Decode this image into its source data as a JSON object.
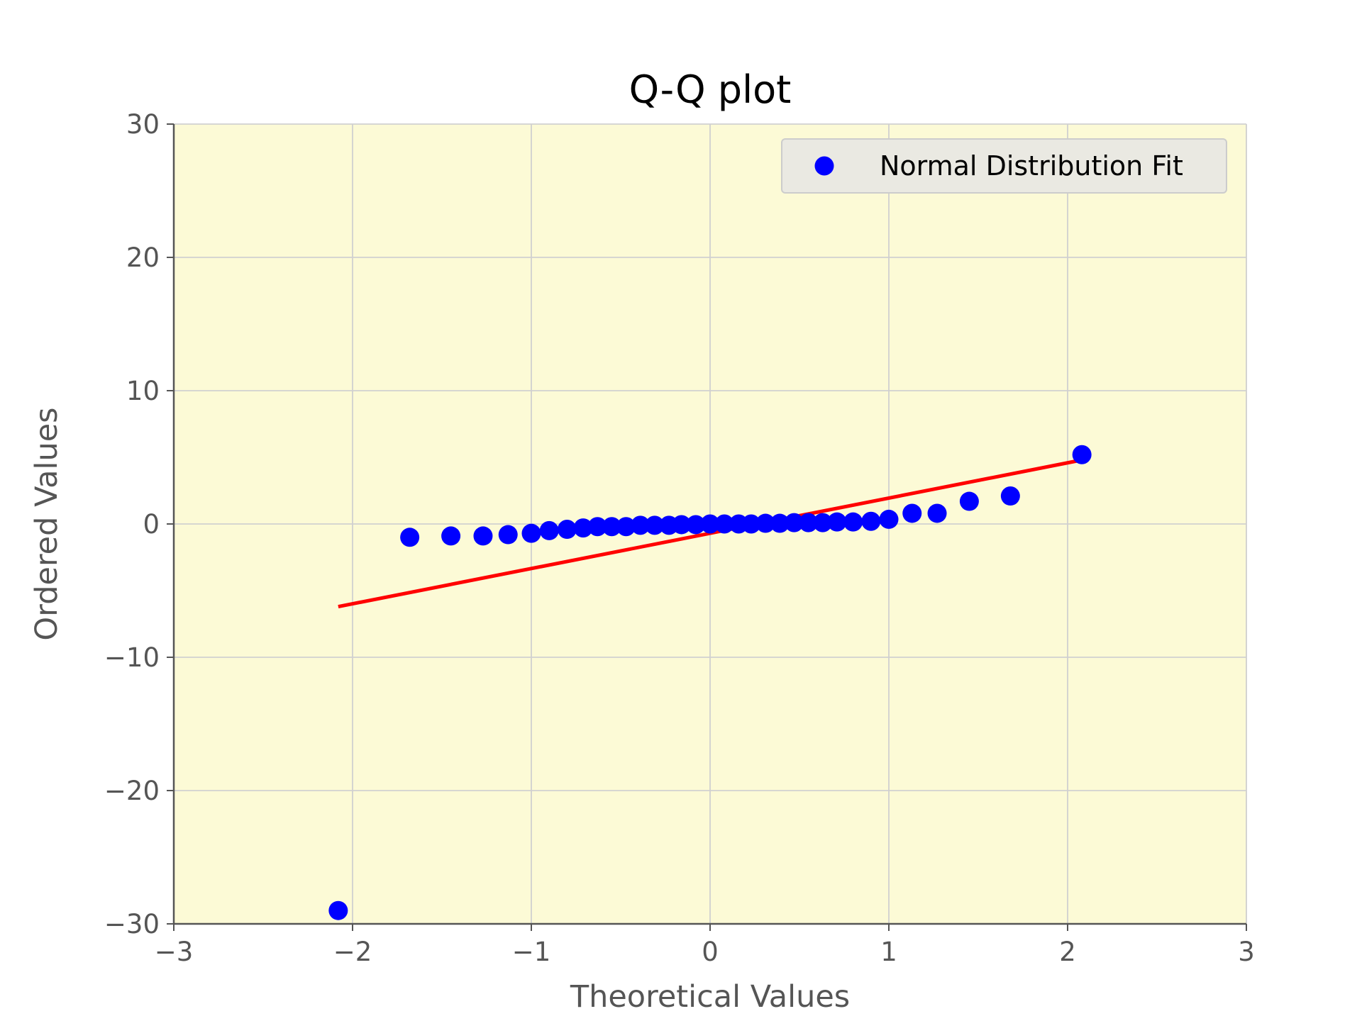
{
  "chart_data": {
    "type": "scatter",
    "title": "Q-Q plot",
    "xlabel": "Theoretical Values",
    "ylabel": "Ordered Values",
    "xlim": [
      -3,
      3
    ],
    "ylim": [
      -30,
      30
    ],
    "xticks": [
      -3,
      -2,
      -1,
      0,
      1,
      2,
      3
    ],
    "yticks": [
      -30,
      -20,
      -10,
      0,
      10,
      20,
      30
    ],
    "grid": true,
    "legend_position": "top-right",
    "colors": {
      "plot_background": "#fcfad6",
      "points": "#0000ff",
      "fit_line": "#ff0000",
      "grid": "#d0d0d0",
      "legend_background": "#eae9e2"
    },
    "series": [
      {
        "name": "Normal Distribution Fit",
        "kind": "points",
        "x": [
          -2.08,
          -1.68,
          -1.45,
          -1.27,
          -1.13,
          -1.0,
          -0.9,
          -0.8,
          -0.71,
          -0.63,
          -0.55,
          -0.47,
          -0.39,
          -0.31,
          -0.23,
          -0.16,
          -0.08,
          0.0,
          0.08,
          0.16,
          0.23,
          0.31,
          0.39,
          0.47,
          0.55,
          0.63,
          0.71,
          0.8,
          0.9,
          1.0,
          1.13,
          1.27,
          1.45,
          1.68,
          2.08
        ],
        "y": [
          -29.0,
          -1.0,
          -0.9,
          -0.9,
          -0.8,
          -0.7,
          -0.5,
          -0.4,
          -0.3,
          -0.2,
          -0.2,
          -0.2,
          -0.1,
          -0.1,
          -0.1,
          -0.05,
          -0.05,
          0.0,
          0.0,
          0.0,
          0.0,
          0.05,
          0.05,
          0.1,
          0.1,
          0.1,
          0.15,
          0.15,
          0.2,
          0.35,
          0.8,
          0.8,
          1.7,
          2.1,
          5.2
        ]
      },
      {
        "kind": "fit_line",
        "x": [
          -2.08,
          2.08
        ],
        "y": [
          -6.2,
          4.8
        ]
      }
    ]
  }
}
